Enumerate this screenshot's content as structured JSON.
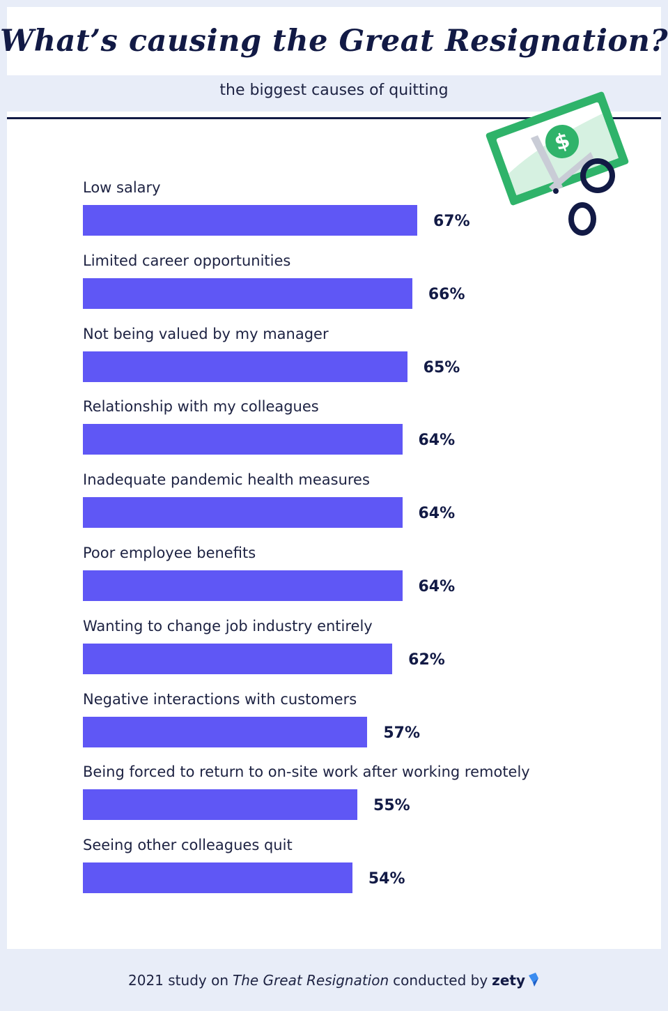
{
  "header": {
    "title": "What’s causing the Great Resignation?",
    "subtitle": "the biggest causes of quitting"
  },
  "colors": {
    "bar": "#5f57f5",
    "title": "#121a45",
    "background": "#e8edf8",
    "money_green": "#2fb36a"
  },
  "art": {
    "icon": "dollar-bill-cut-by-scissors",
    "symbol": "$"
  },
  "chart_data": {
    "type": "bar",
    "orientation": "horizontal",
    "title": "What’s causing the Great Resignation?",
    "subtitle": "the biggest causes of quitting",
    "categories": [
      "Low salary",
      "Limited career opportunities",
      "Not being valued by my manager",
      "Relationship with my colleagues",
      "Inadequate pandemic health measures",
      "Poor employee benefits",
      "Wanting to change job industry entirely",
      "Negative interactions with customers",
      "Being forced to return to on-site work after working remotely",
      "Seeing other colleagues quit"
    ],
    "values": [
      67,
      66,
      65,
      64,
      64,
      64,
      62,
      57,
      55,
      54
    ],
    "value_labels": [
      "67%",
      "66%",
      "65%",
      "64%",
      "64%",
      "64%",
      "62%",
      "57%",
      "55%",
      "54%"
    ],
    "unit": "%",
    "xlim": [
      0,
      100
    ],
    "grid": false,
    "legend": "none"
  },
  "footer": {
    "prefix": "2021 study on",
    "study": "The Great Resignation",
    "middle": "conducted by",
    "brand": "zety"
  }
}
